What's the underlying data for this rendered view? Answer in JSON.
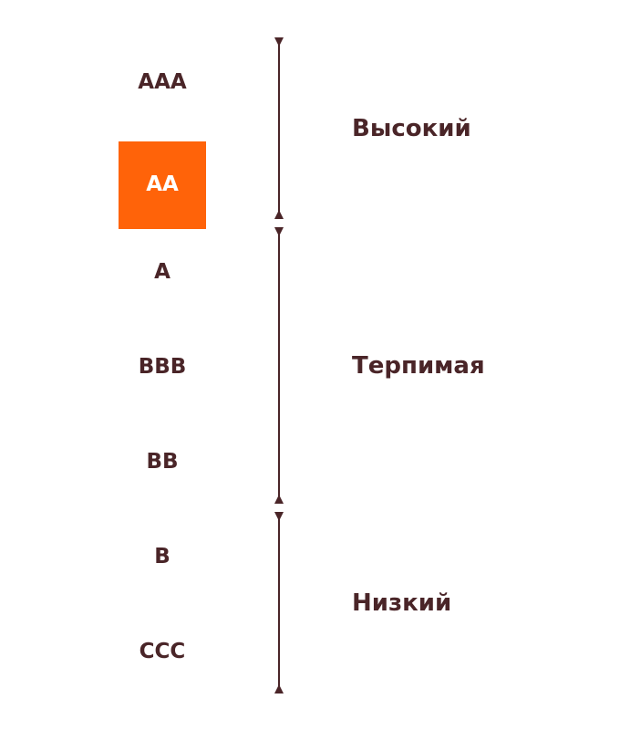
{
  "colors": {
    "text": "#4a2528",
    "highlight_bg": "#ff6309",
    "highlight_text": "#ffffff",
    "axis": "#4a2528"
  },
  "ratings": [
    {
      "label": "AAA",
      "highlighted": false
    },
    {
      "label": "AA",
      "highlighted": true
    },
    {
      "label": "A",
      "highlighted": false
    },
    {
      "label": "BBB",
      "highlighted": false
    },
    {
      "label": "BB",
      "highlighted": false
    },
    {
      "label": "B",
      "highlighted": false
    },
    {
      "label": "CCC",
      "highlighted": false
    }
  ],
  "levels": [
    {
      "label": "Высокий"
    },
    {
      "label": "Терпимая"
    },
    {
      "label": "Низкий"
    }
  ]
}
